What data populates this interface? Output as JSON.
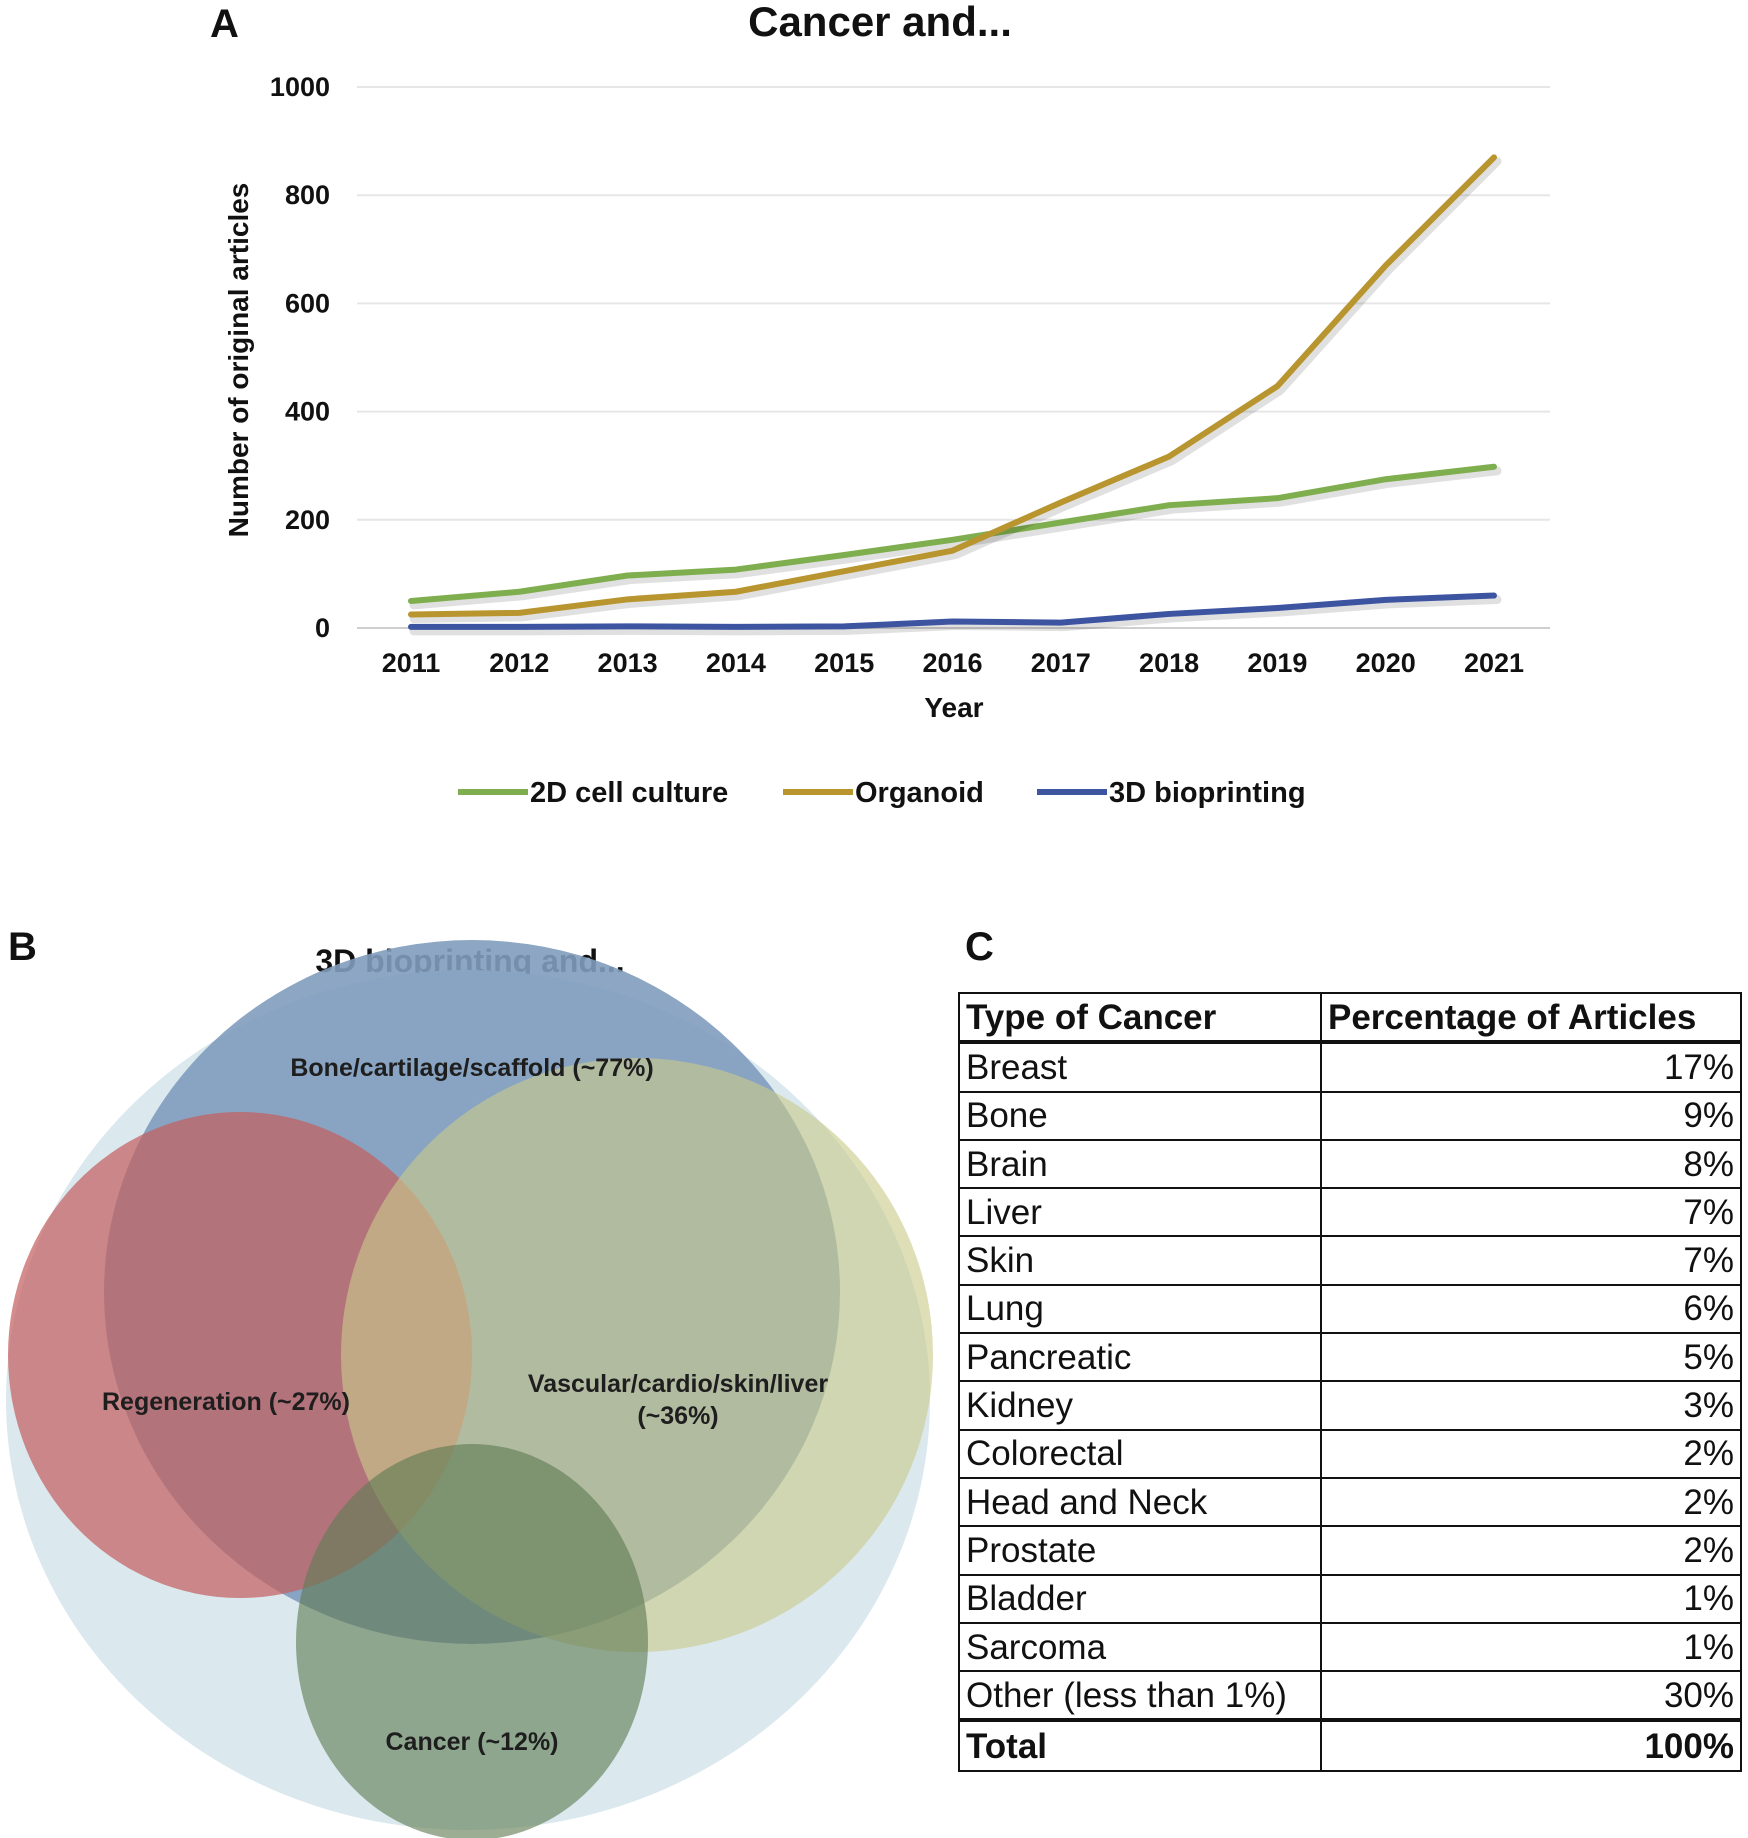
{
  "panel_labels": {
    "a": "A",
    "b": "B",
    "c": "C"
  },
  "chart_data": [
    {
      "type": "line",
      "title": "Cancer and...",
      "xlabel": "Year",
      "ylabel": "Number of original articles",
      "x": [
        "2011",
        "2012",
        "2013",
        "2014",
        "2015",
        "2016",
        "2017",
        "2018",
        "2019",
        "2020",
        "2021"
      ],
      "yticks": [
        "0",
        "200",
        "400",
        "600",
        "800",
        "1000"
      ],
      "ylim": [
        0,
        1000
      ],
      "grid": true,
      "legend": "bottom",
      "series": [
        {
          "name": "2D cell culture",
          "color": "#7fae4e",
          "values": [
            50,
            67,
            97,
            108,
            135,
            163,
            195,
            227,
            240,
            275,
            298
          ]
        },
        {
          "name": "Organoid",
          "color": "#b8952e",
          "values": [
            25,
            28,
            53,
            67,
            105,
            143,
            232,
            317,
            447,
            670,
            870
          ]
        },
        {
          "name": "3D bioprinting",
          "color": "#3d54a1",
          "values": [
            2,
            2,
            3,
            2,
            3,
            12,
            10,
            26,
            37,
            52,
            60
          ]
        }
      ]
    },
    {
      "type": "venn",
      "title": "3D bioprinting and...",
      "sets": [
        {
          "label": "Bone/cartilage/scaffold (~77%)",
          "share": 77
        },
        {
          "label": "Regeneration (~27%)",
          "share": 27
        },
        {
          "label_lines": [
            "Vascular/cardio/skin/liver",
            "(~36%)"
          ],
          "share": 36
        },
        {
          "label": "Cancer (~12%)",
          "share": 12
        }
      ]
    },
    {
      "type": "table",
      "headers": [
        "Type of Cancer",
        "Percentage of Articles"
      ],
      "rows": [
        [
          "Breast",
          "17%"
        ],
        [
          "Bone",
          "9%"
        ],
        [
          "Brain",
          "8%"
        ],
        [
          "Liver",
          "7%"
        ],
        [
          "Skin",
          "7%"
        ],
        [
          "Lung",
          "6%"
        ],
        [
          "Pancreatic",
          "5%"
        ],
        [
          "Kidney",
          "3%"
        ],
        [
          "Colorectal",
          "2%"
        ],
        [
          "Head and Neck",
          "2%"
        ],
        [
          "Prostate",
          "2%"
        ],
        [
          "Bladder",
          "1%"
        ],
        [
          "Sarcoma",
          "1%"
        ],
        [
          "Other (less than 1%)",
          "30%"
        ]
      ],
      "total": [
        "Total",
        "100%"
      ]
    }
  ]
}
